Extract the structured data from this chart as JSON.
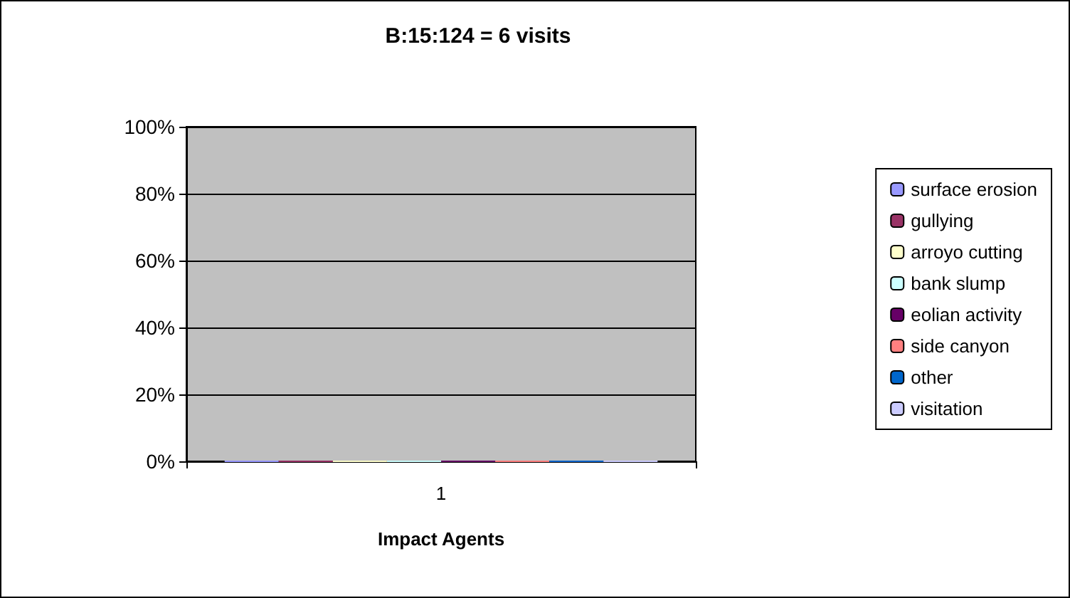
{
  "chart_data": {
    "type": "bar",
    "title": "B:15:124 = 6 visits",
    "xlabel": "Impact Agents",
    "categories": [
      "1"
    ],
    "series": [
      {
        "name": "surface erosion",
        "color": "#9999ff",
        "values": [
          0
        ]
      },
      {
        "name": "gullying",
        "color": "#993366",
        "values": [
          0
        ]
      },
      {
        "name": "arroyo cutting",
        "color": "#ffffcc",
        "values": [
          0
        ]
      },
      {
        "name": "bank slump",
        "color": "#ccffff",
        "values": [
          0
        ]
      },
      {
        "name": "eolian activity",
        "color": "#660066",
        "values": [
          0
        ]
      },
      {
        "name": "side canyon",
        "color": "#ff8080",
        "values": [
          0
        ]
      },
      {
        "name": "other",
        "color": "#0066cc",
        "values": [
          0
        ]
      },
      {
        "name": "visitation",
        "color": "#ccccff",
        "values": [
          0
        ]
      }
    ],
    "ylim": [
      0,
      100
    ],
    "yticks": [
      {
        "value": 0,
        "label": "0%"
      },
      {
        "value": 20,
        "label": "20%"
      },
      {
        "value": 40,
        "label": "40%"
      },
      {
        "value": 60,
        "label": "60%"
      },
      {
        "value": 80,
        "label": "80%"
      },
      {
        "value": 100,
        "label": "100%"
      }
    ],
    "grid": "y",
    "legend": "right"
  }
}
